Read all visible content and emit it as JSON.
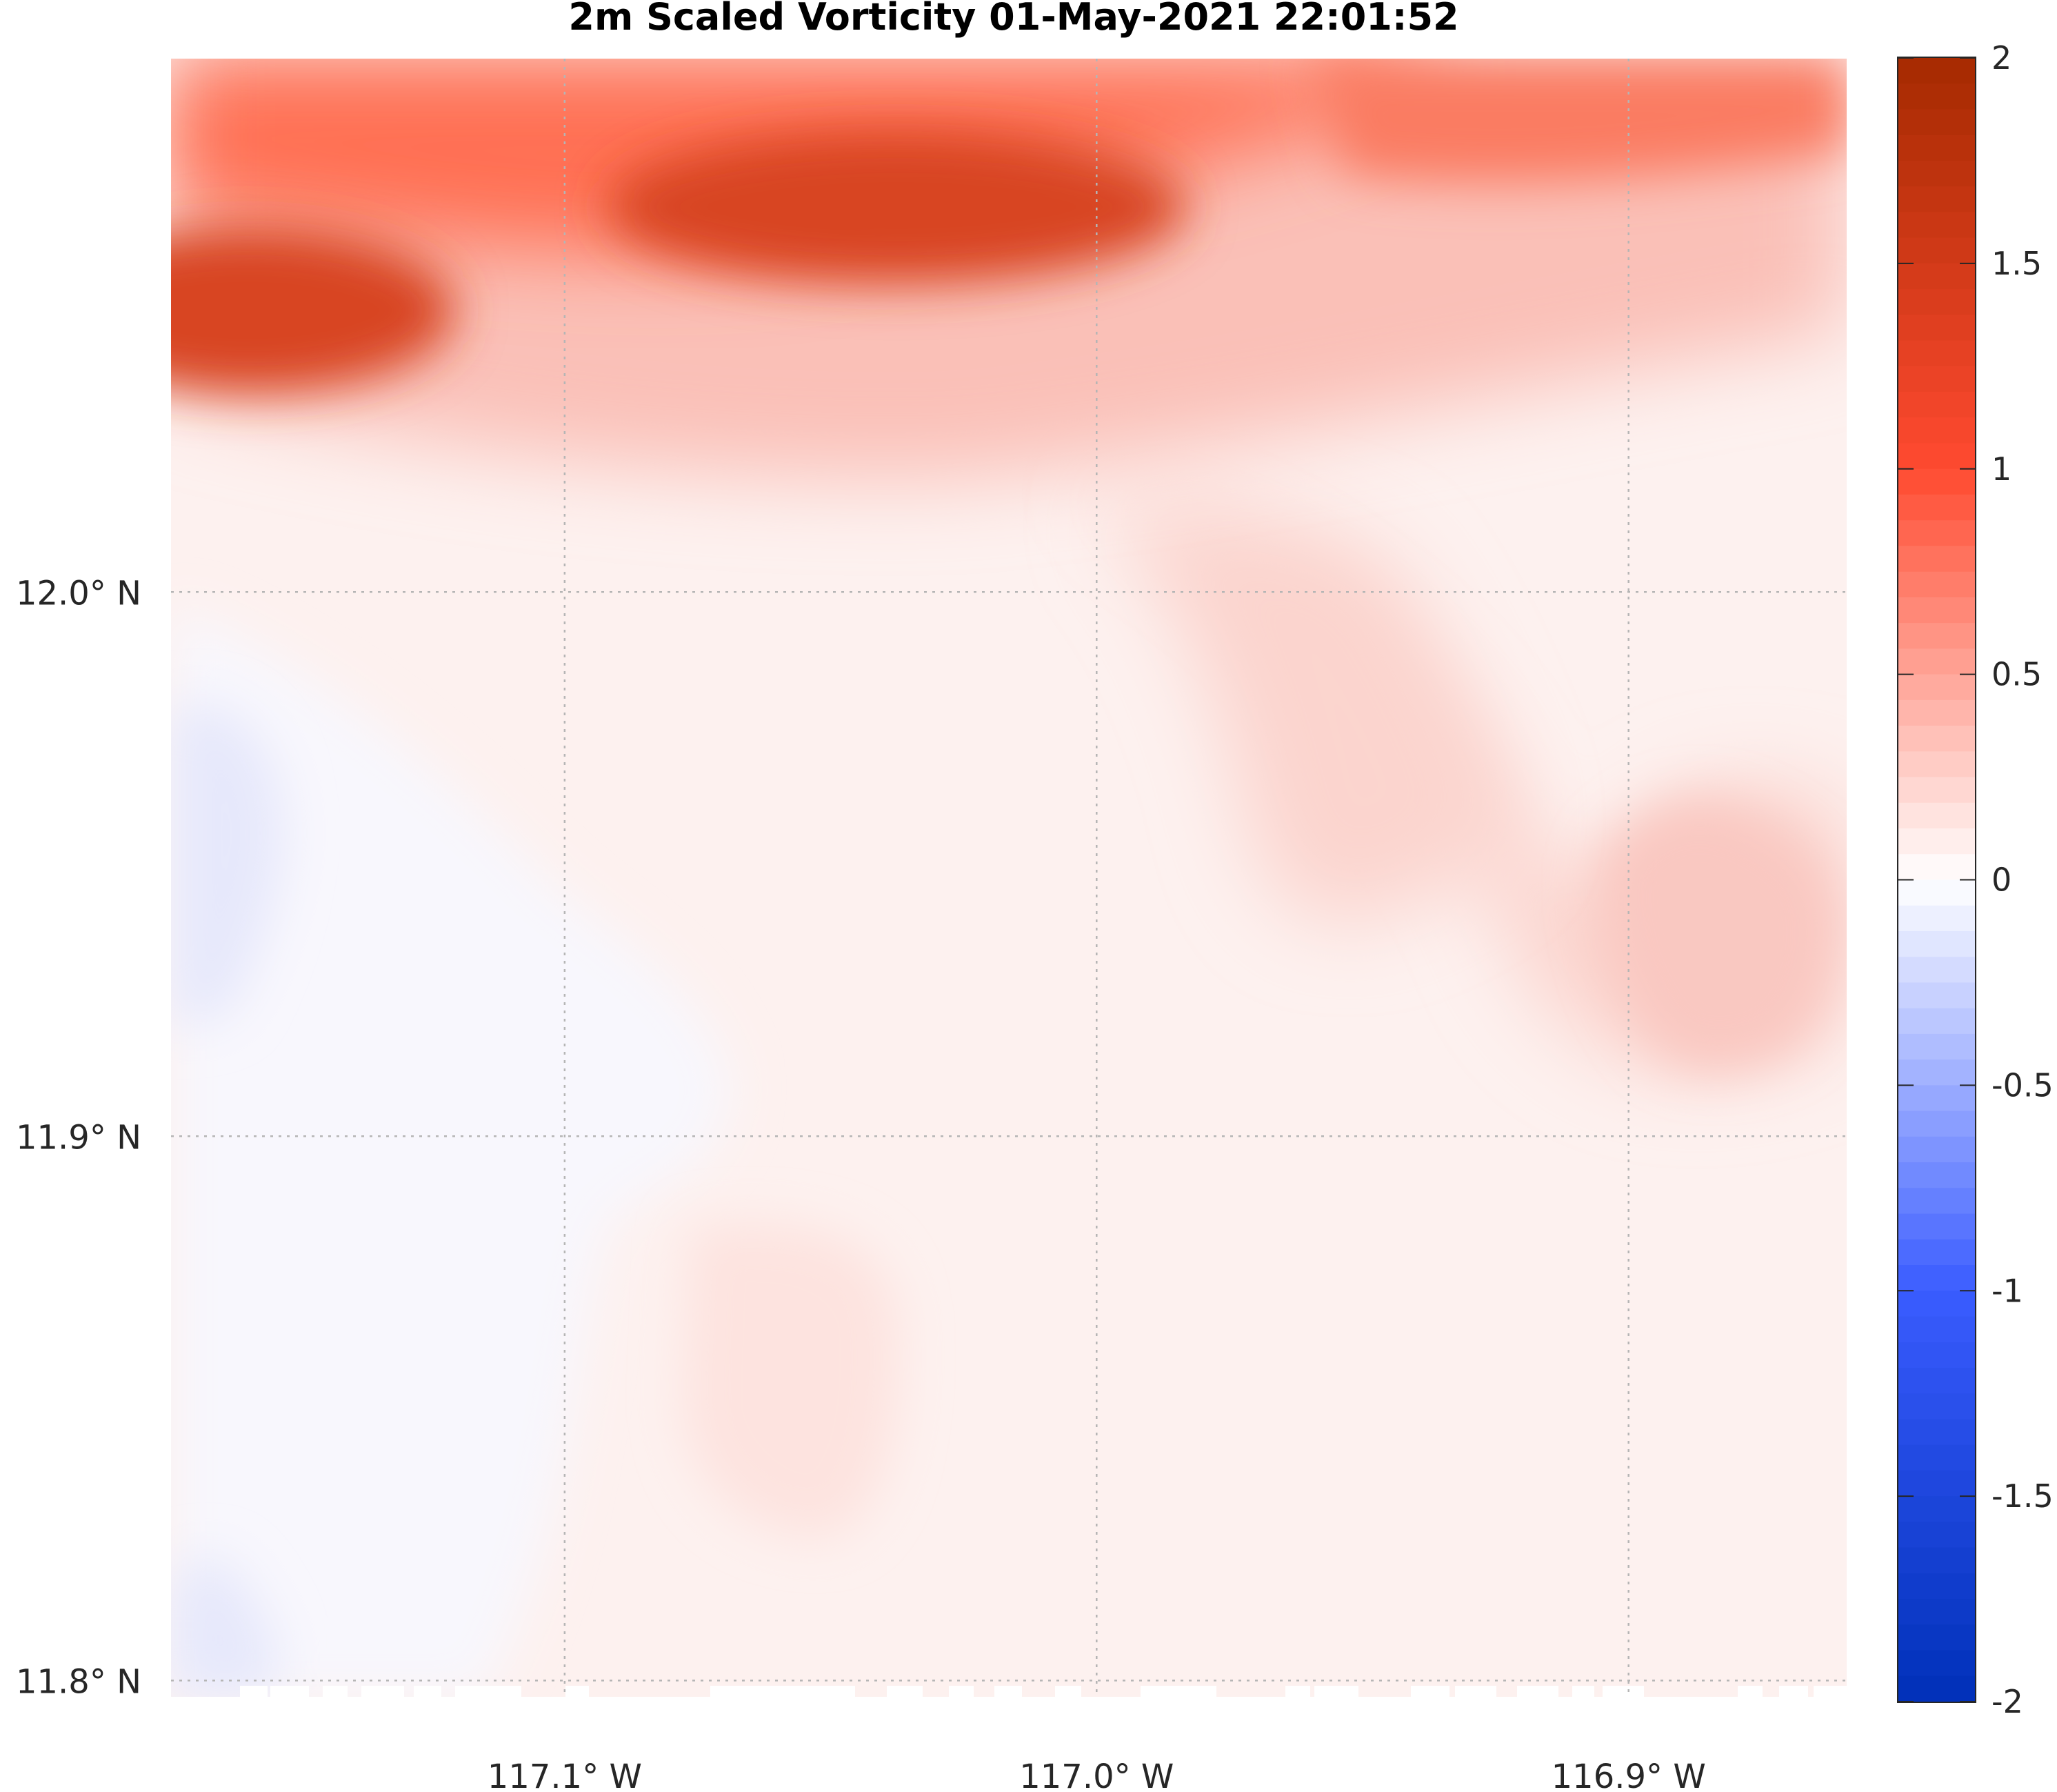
{
  "chart_data": {
    "type": "heatmap",
    "title": "2m Scaled Vorticity  01-May-2021 22:01:52",
    "xlabel": "",
    "ylabel": "",
    "x_ticks": [
      {
        "value": -117.1,
        "label": "117.1° W"
      },
      {
        "value": -117.0,
        "label": "117.0° W"
      },
      {
        "value": -116.9,
        "label": "116.9° W"
      }
    ],
    "y_ticks": [
      {
        "value": 12.0,
        "label": "12.0° N"
      },
      {
        "value": 11.9,
        "label": "11.9° N"
      },
      {
        "value": 11.8,
        "label": "11.8° N"
      }
    ],
    "xlim": [
      -117.174,
      -116.859
    ],
    "ylim": [
      11.797,
      12.098
    ],
    "grid": true,
    "colorbar": {
      "range": [
        -2,
        2
      ],
      "ticks": [
        2,
        1.5,
        1,
        0.5,
        0,
        -0.5,
        -1,
        -1.5,
        -2
      ],
      "tick_labels": [
        "2",
        "1.5",
        "1",
        "0.5",
        "0",
        "-0.5",
        "-1",
        "-1.5",
        "-2"
      ],
      "levels": 64,
      "colors": {
        "low": "#0030b8",
        "mid_low": "#3a5cff",
        "zero": "#ffffff",
        "mid_high": "#ff4a30",
        "high": "#a52a00"
      }
    },
    "field": {
      "description_units": "scaled vorticity (dimensionless)",
      "features": [
        {
          "kind": "maximum",
          "lon": -117.16,
          "lat": 12.05,
          "value": 1.45
        },
        {
          "kind": "maximum",
          "lon": -117.02,
          "lat": 12.08,
          "value": 1.45
        },
        {
          "kind": "minimum",
          "lon": -117.16,
          "lat": 11.97,
          "value": -0.1
        },
        {
          "kind": "minimum",
          "lon": -117.16,
          "lat": 11.81,
          "value": -0.1
        }
      ]
    }
  }
}
